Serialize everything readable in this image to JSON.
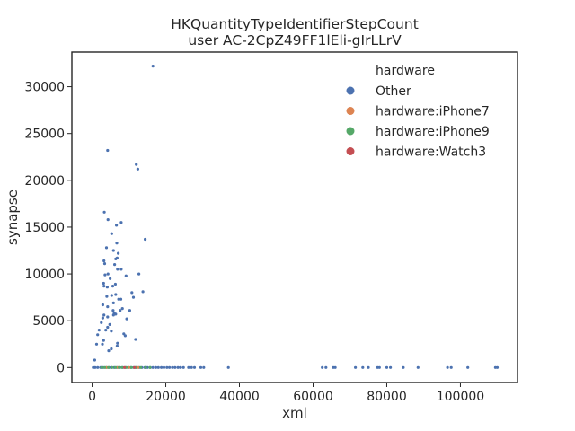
{
  "chart_data": {
    "type": "scatter",
    "title": "HKQuantityTypeIdentifierStepCount",
    "subtitle": "user AC-2CpZ49FF1lEli-gIrLLrV",
    "xlabel": "xml",
    "ylabel": "synapse",
    "xlim": [
      -5500,
      115500
    ],
    "ylim": [
      -1600,
      33700
    ],
    "xticks": [
      0,
      20000,
      40000,
      60000,
      80000,
      100000
    ],
    "yticks": [
      0,
      5000,
      10000,
      15000,
      20000,
      25000,
      30000
    ],
    "grid": false,
    "legend": {
      "title": "hardware",
      "placement": "top-right",
      "entries": [
        "Other",
        " hardware:iPhone7",
        " hardware:iPhone9",
        " hardware:Watch3"
      ]
    },
    "series": [
      {
        "name": "Other",
        "color": "#4c72b0",
        "points": [
          [
            16500,
            32200
          ],
          [
            4200,
            23200
          ],
          [
            12000,
            21700
          ],
          [
            12400,
            21200
          ],
          [
            3300,
            16600
          ],
          [
            4300,
            15800
          ],
          [
            7900,
            15500
          ],
          [
            6600,
            15200
          ],
          [
            5300,
            14300
          ],
          [
            14400,
            13700
          ],
          [
            6700,
            13300
          ],
          [
            3900,
            12800
          ],
          [
            5800,
            12500
          ],
          [
            7100,
            12200
          ],
          [
            6800,
            11700
          ],
          [
            6400,
            11600
          ],
          [
            3200,
            11400
          ],
          [
            3400,
            11100
          ],
          [
            6100,
            11000
          ],
          [
            6900,
            10500
          ],
          [
            7900,
            10500
          ],
          [
            12700,
            10000
          ],
          [
            4300,
            10000
          ],
          [
            3500,
            9900
          ],
          [
            9200,
            9800
          ],
          [
            4900,
            9500
          ],
          [
            3100,
            9000
          ],
          [
            6300,
            8900
          ],
          [
            5600,
            8700
          ],
          [
            3200,
            8700
          ],
          [
            4100,
            8600
          ],
          [
            13800,
            8100
          ],
          [
            10800,
            8000
          ],
          [
            6400,
            7800
          ],
          [
            5300,
            7700
          ],
          [
            4000,
            7600
          ],
          [
            11200,
            7500
          ],
          [
            7800,
            7300
          ],
          [
            7200,
            7300
          ],
          [
            5800,
            6900
          ],
          [
            2900,
            6700
          ],
          [
            4200,
            6500
          ],
          [
            8200,
            6300
          ],
          [
            7600,
            6100
          ],
          [
            5700,
            6100
          ],
          [
            10200,
            6100
          ],
          [
            6000,
            5800
          ],
          [
            6400,
            5700
          ],
          [
            3200,
            5600
          ],
          [
            5800,
            5600
          ],
          [
            2900,
            5300
          ],
          [
            4200,
            5400
          ],
          [
            9400,
            5200
          ],
          [
            2500,
            4800
          ],
          [
            4800,
            4600
          ],
          [
            4200,
            4300
          ],
          [
            1900,
            4000
          ],
          [
            3700,
            4000
          ],
          [
            5200,
            3900
          ],
          [
            8600,
            3600
          ],
          [
            1500,
            3500
          ],
          [
            9000,
            3400
          ],
          [
            11800,
            3000
          ],
          [
            3100,
            2900
          ],
          [
            6900,
            2600
          ],
          [
            2800,
            2500
          ],
          [
            1200,
            2500
          ],
          [
            6800,
            2300
          ],
          [
            5200,
            2000
          ],
          [
            4500,
            1800
          ],
          [
            700,
            800
          ],
          [
            300,
            0
          ],
          [
            800,
            0
          ],
          [
            1500,
            0
          ],
          [
            2300,
            0
          ],
          [
            3000,
            0
          ],
          [
            3800,
            0
          ],
          [
            4600,
            0
          ],
          [
            5200,
            0
          ],
          [
            6000,
            0
          ],
          [
            6700,
            0
          ],
          [
            7500,
            0
          ],
          [
            8300,
            0
          ],
          [
            9000,
            0
          ],
          [
            9800,
            0
          ],
          [
            10500,
            0
          ],
          [
            11300,
            0
          ],
          [
            12000,
            0
          ],
          [
            12800,
            0
          ],
          [
            13500,
            0
          ],
          [
            14300,
            0
          ],
          [
            15000,
            0
          ],
          [
            15800,
            0
          ],
          [
            16500,
            0
          ],
          [
            17300,
            0
          ],
          [
            18000,
            0
          ],
          [
            18800,
            0
          ],
          [
            19500,
            0
          ],
          [
            20300,
            0
          ],
          [
            21000,
            0
          ],
          [
            21800,
            0
          ],
          [
            22500,
            0
          ],
          [
            23300,
            0
          ],
          [
            24000,
            0
          ],
          [
            24800,
            0
          ],
          [
            26200,
            0
          ],
          [
            27000,
            0
          ],
          [
            27800,
            0
          ],
          [
            29500,
            0
          ],
          [
            30300,
            0
          ],
          [
            37000,
            0
          ],
          [
            62500,
            0
          ],
          [
            63500,
            0
          ],
          [
            65500,
            0
          ],
          [
            66000,
            0
          ],
          [
            71500,
            0
          ],
          [
            73500,
            0
          ],
          [
            75000,
            0
          ],
          [
            77500,
            0
          ],
          [
            78000,
            0
          ],
          [
            80000,
            0
          ],
          [
            81000,
            0
          ],
          [
            84500,
            0
          ],
          [
            88500,
            0
          ],
          [
            96500,
            0
          ],
          [
            97500,
            0
          ],
          [
            102000,
            0
          ],
          [
            109500,
            0
          ],
          [
            110000,
            0
          ]
        ]
      },
      {
        "name": " hardware:iPhone7",
        "color": "#dd8452",
        "points": [
          [
            4000,
            0
          ],
          [
            7000,
            0
          ],
          [
            10000,
            0
          ],
          [
            12500,
            0
          ]
        ]
      },
      {
        "name": " hardware:iPhone9",
        "color": "#55a868",
        "points": [
          [
            2600,
            0
          ],
          [
            3400,
            0
          ],
          [
            4400,
            0
          ],
          [
            5400,
            0
          ],
          [
            6300,
            0
          ],
          [
            7300,
            0
          ],
          [
            8100,
            0
          ],
          [
            9300,
            0
          ],
          [
            10700,
            0
          ],
          [
            11800,
            0
          ],
          [
            13200,
            0
          ],
          [
            14500,
            0
          ],
          [
            15700,
            0
          ]
        ]
      },
      {
        "name": " hardware:Watch3",
        "color": "#c44e52",
        "points": [
          [
            8800,
            0
          ],
          [
            11500,
            0
          ]
        ]
      }
    ]
  }
}
